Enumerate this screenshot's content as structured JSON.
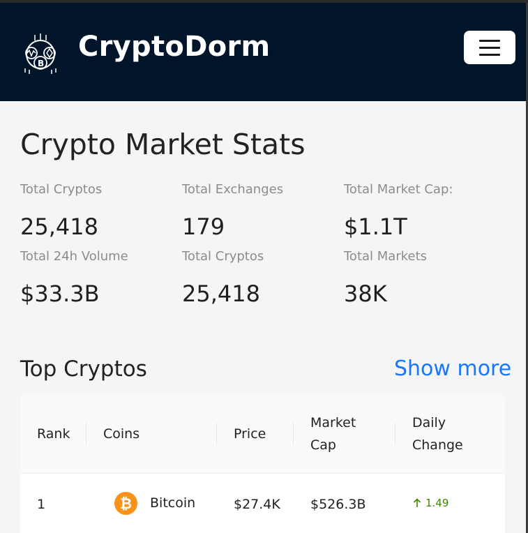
{
  "app": {
    "brand": "CryptoDorm"
  },
  "stats": {
    "title": "Crypto Market Stats",
    "items": [
      {
        "label": "Total Cryptos",
        "value": "25,418"
      },
      {
        "label": "Total Exchanges",
        "value": "179"
      },
      {
        "label": "Total Market Cap:",
        "value": "$1.1T"
      },
      {
        "label": "Total 24h Volume",
        "value": "$33.3B"
      },
      {
        "label": "Total Cryptos",
        "value": "25,418"
      },
      {
        "label": "Total Markets",
        "value": "38K"
      }
    ]
  },
  "top": {
    "title": "Top Cryptos",
    "show_more": "Show more",
    "columns": {
      "rank": "Rank",
      "coins": "Coins",
      "price": "Price",
      "market_cap_1": "Market",
      "market_cap_2": "Cap",
      "daily_change_1": "Daily",
      "daily_change_2": "Change"
    },
    "rows": [
      {
        "rank": "1",
        "coin": "Bitcoin",
        "price": "$27.4K",
        "market_cap": "$526.3B",
        "change": "1.49",
        "change_color": "#3f8600"
      }
    ]
  },
  "colors": {
    "navbar": "#001529",
    "accent": "#1677ff",
    "positive": "#3f8600",
    "bitcoin": "#f7931a"
  },
  "icons": {
    "logo": "crypto-logo-icon",
    "menu": "hamburger-menu-icon",
    "coin": "bitcoin-icon",
    "trend": "arrow-up-icon"
  }
}
